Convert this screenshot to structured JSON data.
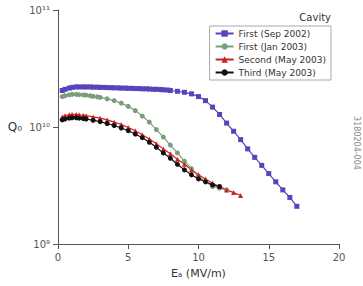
{
  "chart_data": {
    "type": "line",
    "xlabel": "Eₐ (MV/m)",
    "ylabel": "Q₀",
    "legend_title": "Cavity",
    "annotations": [
      "3180204-004"
    ],
    "log": "y",
    "grid": false,
    "legend": "upper right",
    "xlim": [
      0,
      20
    ],
    "xticks": [
      0,
      5,
      10,
      15,
      20
    ],
    "ylim": [
      1000000000,
      100000000000
    ],
    "yticks": [
      {
        "value": 1000000000,
        "label": "10⁹"
      },
      {
        "value": 10000000000,
        "label": "10¹⁰"
      },
      {
        "value": 100000000000,
        "label": "10¹¹"
      }
    ],
    "series": [
      {
        "name": "First (Sep 2002)",
        "color": "#5544bb",
        "marker": "square",
        "x": [
          0.3,
          0.5,
          0.8,
          1.0,
          1.3,
          1.5,
          1.8,
          2.0,
          2.3,
          2.5,
          2.8,
          3.0,
          3.3,
          3.5,
          3.8,
          4.0,
          4.3,
          4.5,
          4.8,
          5.0,
          5.3,
          5.5,
          5.8,
          6.0,
          6.3,
          6.5,
          6.8,
          7.0,
          7.3,
          7.5,
          7.8,
          8.0,
          8.5,
          9.0,
          9.5,
          10.0,
          10.5,
          11.0,
          11.5,
          12.0,
          12.5,
          13.0,
          13.5,
          14.0,
          14.5,
          15.0,
          15.5,
          16.0,
          16.5,
          17.0
        ],
        "values": [
          20500000000.0,
          21000000000.0,
          21500000000.0,
          21800000000.0,
          22000000000.0,
          22000000000.0,
          22000000000.0,
          22000000000.0,
          22000000000.0,
          21900000000.0,
          21900000000.0,
          21800000000.0,
          21800000000.0,
          21700000000.0,
          21700000000.0,
          21600000000.0,
          21600000000.0,
          21500000000.0,
          21500000000.0,
          21400000000.0,
          21400000000.0,
          21300000000.0,
          21300000000.0,
          21200000000.0,
          21200000000.0,
          21100000000.0,
          21000000000.0,
          21000000000.0,
          20900000000.0,
          20800000000.0,
          20700000000.0,
          20500000000.0,
          20200000000.0,
          19800000000.0,
          19200000000.0,
          18200000000.0,
          16800000000.0,
          14800000000.0,
          12800000000.0,
          10800000000.0,
          9200000000.0,
          7800000000.0,
          6500000000.0,
          5500000000.0,
          4700000000.0,
          4000000000.0,
          3400000000.0,
          2900000000.0,
          2500000000.0,
          2100000000.0
        ]
      },
      {
        "name": "First (Jan 2003)",
        "color": "#7a9e7a",
        "marker": "circle",
        "x": [
          0.3,
          0.5,
          0.8,
          1.0,
          1.3,
          1.5,
          1.8,
          2.0,
          2.3,
          2.5,
          2.8,
          3.0,
          3.5,
          4.0,
          4.5,
          5.0,
          5.5,
          6.0,
          6.5,
          7.0,
          7.5,
          8.0,
          8.5,
          9.0,
          9.5,
          10.0,
          10.5,
          11.0,
          11.5,
          12.0
        ],
        "values": [
          18200000000.0,
          18500000000.0,
          18800000000.0,
          19000000000.0,
          19000000000.0,
          18900000000.0,
          18800000000.0,
          18700000000.0,
          18500000000.0,
          18300000000.0,
          18100000000.0,
          17900000000.0,
          17400000000.0,
          16800000000.0,
          16000000000.0,
          15000000000.0,
          13800000000.0,
          12400000000.0,
          11000000000.0,
          9500000000.0,
          8200000000.0,
          7000000000.0,
          6000000000.0,
          5100000000.0,
          4400000000.0,
          3800000000.0,
          3400000000.0,
          3100000000.0,
          3000000000.0,
          2900000000.0
        ]
      },
      {
        "name": "Second (May 2003)",
        "color": "#cc2222",
        "marker": "triangle",
        "x": [
          0.3,
          0.5,
          0.8,
          1.0,
          1.3,
          1.5,
          1.8,
          2.0,
          2.5,
          3.0,
          3.5,
          4.0,
          4.5,
          5.0,
          5.5,
          6.0,
          6.5,
          7.0,
          7.5,
          8.0,
          8.5,
          9.0,
          9.5,
          10.0,
          10.5,
          11.0,
          11.5,
          12.0,
          12.5,
          13.0
        ],
        "values": [
          12200000000.0,
          12500000000.0,
          12700000000.0,
          12800000000.0,
          12800000000.0,
          12700000000.0,
          12600000000.0,
          12500000000.0,
          12200000000.0,
          11900000000.0,
          11500000000.0,
          11000000000.0,
          10500000000.0,
          9900000000.0,
          9300000000.0,
          8600000000.0,
          7900000000.0,
          7200000000.0,
          6500000000.0,
          5900000000.0,
          5300000000.0,
          4800000000.0,
          4300000000.0,
          3900000000.0,
          3600000000.0,
          3300000000.0,
          3100000000.0,
          2900000000.0,
          2750000000.0,
          2600000000.0
        ]
      },
      {
        "name": "Third (May 2003)",
        "color": "#111111",
        "marker": "circle",
        "x": [
          0.3,
          0.5,
          0.8,
          1.0,
          1.3,
          1.5,
          1.8,
          2.0,
          2.5,
          3.0,
          3.5,
          4.0,
          4.5,
          5.0,
          5.5,
          6.0,
          6.5,
          7.0,
          7.5,
          8.0,
          8.5,
          9.0,
          9.5,
          10.0,
          10.5,
          11.0,
          11.5
        ],
        "values": [
          11500000000.0,
          11700000000.0,
          11900000000.0,
          12000000000.0,
          12000000000.0,
          11900000000.0,
          11800000000.0,
          11700000000.0,
          11400000000.0,
          11100000000.0,
          10700000000.0,
          10300000000.0,
          9800000000.0,
          9300000000.0,
          8700000000.0,
          8100000000.0,
          7400000000.0,
          6700000000.0,
          6000000000.0,
          5400000000.0,
          4800000000.0,
          4300000000.0,
          3900000000.0,
          3600000000.0,
          3400000000.0,
          3200000000.0,
          3100000000.0
        ]
      }
    ]
  }
}
